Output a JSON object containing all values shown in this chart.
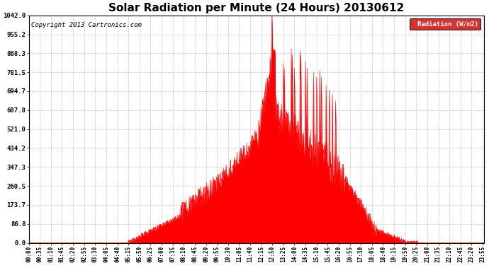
{
  "title": "Solar Radiation per Minute (24 Hours) 20130612",
  "copyright_text": "Copyright 2013 Cartronics.com",
  "legend_label": "Radiation (W/m2)",
  "y_ticks": [
    0.0,
    86.8,
    173.7,
    260.5,
    347.3,
    434.2,
    521.0,
    607.8,
    694.7,
    781.5,
    868.3,
    955.2,
    1042.0
  ],
  "ymax": 1042.0,
  "ymin": 0.0,
  "bar_color": "#ff0000",
  "background_color": "#ffffff",
  "grid_color": "#999999",
  "title_fontsize": 11,
  "copyright_fontsize": 6.5,
  "legend_bg": "#cc0000",
  "legend_text_color": "#ffffff",
  "x_tick_interval": 35,
  "total_minutes": 1440
}
